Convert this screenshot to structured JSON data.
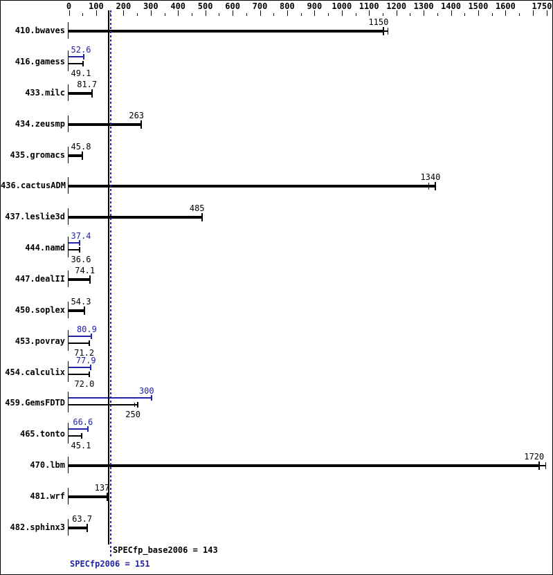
{
  "colors": {
    "base": "#000000",
    "peak": "#2222aa",
    "background": "#ffffff",
    "border": "#000000"
  },
  "chart_data": {
    "type": "bar",
    "orientation": "horizontal",
    "title": "",
    "xlabel": "",
    "ylabel": "",
    "axis": {
      "min": 0,
      "max": 1750,
      "minor_step": 50,
      "major_step": 100,
      "labeled_ticks": [
        0,
        100,
        200,
        300,
        400,
        500,
        600,
        700,
        800,
        900,
        1000,
        1100,
        1200,
        1300,
        1400,
        1500,
        1600,
        1750
      ]
    },
    "series_legend": [
      {
        "name": "peak",
        "color": "#2222aa"
      },
      {
        "name": "base",
        "color": "#000000"
      }
    ],
    "benchmarks": [
      {
        "name": "410.bwaves",
        "peak": null,
        "peak_label": null,
        "base": 1150,
        "base_label": "1150",
        "run_tick_offsets_base": [
          18
        ]
      },
      {
        "name": "416.gamess",
        "peak": 52.6,
        "peak_label": "52.6",
        "base": 49.1,
        "base_label": "49.1",
        "run_tick_offsets_base": []
      },
      {
        "name": "433.milc",
        "peak": null,
        "peak_label": null,
        "base": 81.7,
        "base_label": "81.7",
        "run_tick_offsets_base": []
      },
      {
        "name": "434.zeusmp",
        "peak": null,
        "peak_label": null,
        "base": 263,
        "base_label": "263",
        "run_tick_offsets_base": []
      },
      {
        "name": "435.gromacs",
        "peak": null,
        "peak_label": null,
        "base": 45.8,
        "base_label": "45.8",
        "run_tick_offsets_base": []
      },
      {
        "name": "436.cactusADM",
        "peak": null,
        "peak_label": null,
        "base": 1340,
        "base_label": "1340",
        "run_tick_offsets_base": [
          -23
        ]
      },
      {
        "name": "437.leslie3d",
        "peak": null,
        "peak_label": null,
        "base": 485,
        "base_label": "485",
        "run_tick_offsets_base": []
      },
      {
        "name": "444.namd",
        "peak": 37.4,
        "peak_label": "37.4",
        "base": 36.6,
        "base_label": "36.6",
        "run_tick_offsets_base": []
      },
      {
        "name": "447.dealII",
        "peak": null,
        "peak_label": null,
        "base": 74.1,
        "base_label": "74.1",
        "run_tick_offsets_base": []
      },
      {
        "name": "450.soplex",
        "peak": null,
        "peak_label": null,
        "base": 54.3,
        "base_label": "54.3",
        "run_tick_offsets_base": []
      },
      {
        "name": "453.povray",
        "peak": 80.9,
        "peak_label": "80.9",
        "base": 71.2,
        "base_label": "71.2",
        "run_tick_offsets_base": []
      },
      {
        "name": "454.calculix",
        "peak": 77.9,
        "peak_label": "77.9",
        "base": 72.0,
        "base_label": "72.0",
        "run_tick_offsets_base": []
      },
      {
        "name": "459.GemsFDTD",
        "peak": 300,
        "peak_label": "300",
        "base": 250,
        "base_label": "250",
        "run_tick_offsets_base": [
          -10
        ]
      },
      {
        "name": "465.tonto",
        "peak": 66.6,
        "peak_label": "66.6",
        "base": 45.1,
        "base_label": "45.1",
        "run_tick_offsets_base": []
      },
      {
        "name": "470.lbm",
        "peak": null,
        "peak_label": null,
        "base": 1720,
        "base_label": "1720",
        "run_tick_offsets_base": [
          25
        ]
      },
      {
        "name": "481.wrf",
        "peak": null,
        "peak_label": null,
        "base": 137,
        "base_label": "137",
        "run_tick_offsets_base": []
      },
      {
        "name": "482.sphinx3",
        "peak": null,
        "peak_label": null,
        "base": 63.7,
        "base_label": "63.7",
        "run_tick_offsets_base": []
      }
    ],
    "reference_lines": [
      {
        "id": "base_mean",
        "value": 143,
        "style": "solid",
        "color": "#000000"
      },
      {
        "id": "peak_mean",
        "value": 151,
        "style": "dotted",
        "color": "#2222aa"
      }
    ],
    "summary": {
      "base_text": "SPECfp_base2006 = 143",
      "peak_text": "SPECfp2006 = 151"
    }
  }
}
